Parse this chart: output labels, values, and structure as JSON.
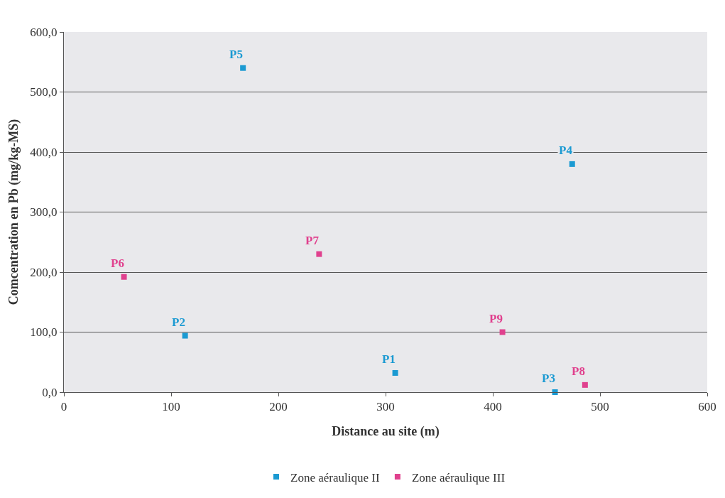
{
  "chart_data": {
    "type": "scatter",
    "xlabel": "Distance au site (m)",
    "ylabel": "Comcentration en Pb (mg/kg-MS)",
    "series": [
      {
        "name": "Zone aéraulique II",
        "color": "#1b9ad2",
        "x": [
          309,
          113,
          458,
          474,
          167
        ],
        "values": [
          32,
          94,
          0,
          380,
          540
        ],
        "value_labels": [
          "P1",
          "P2",
          "P3",
          "P4",
          "P5"
        ]
      },
      {
        "name": "Zone aéraulique III",
        "color": "#e0418e",
        "x": [
          56,
          238,
          486,
          409
        ],
        "values": [
          192,
          230,
          12,
          100
        ],
        "value_labels": [
          "P6",
          "P7",
          "P8",
          "P9"
        ]
      }
    ],
    "xlim": [
      0,
      600
    ],
    "xticks": [
      0,
      100,
      200,
      300,
      400,
      500,
      600
    ],
    "ylim": [
      0,
      600
    ],
    "yticks": [
      {
        "value": 0,
        "label": "0,0"
      },
      {
        "value": 100,
        "label": "100,0"
      },
      {
        "value": 200,
        "label": "200,0"
      },
      {
        "value": 300,
        "label": "300,0"
      },
      {
        "value": 400,
        "label": "400,0"
      },
      {
        "value": 500,
        "label": "500,0"
      },
      {
        "value": 600,
        "label": "600,0"
      }
    ],
    "grid": "y",
    "legend": "bottom",
    "marker": "square"
  }
}
